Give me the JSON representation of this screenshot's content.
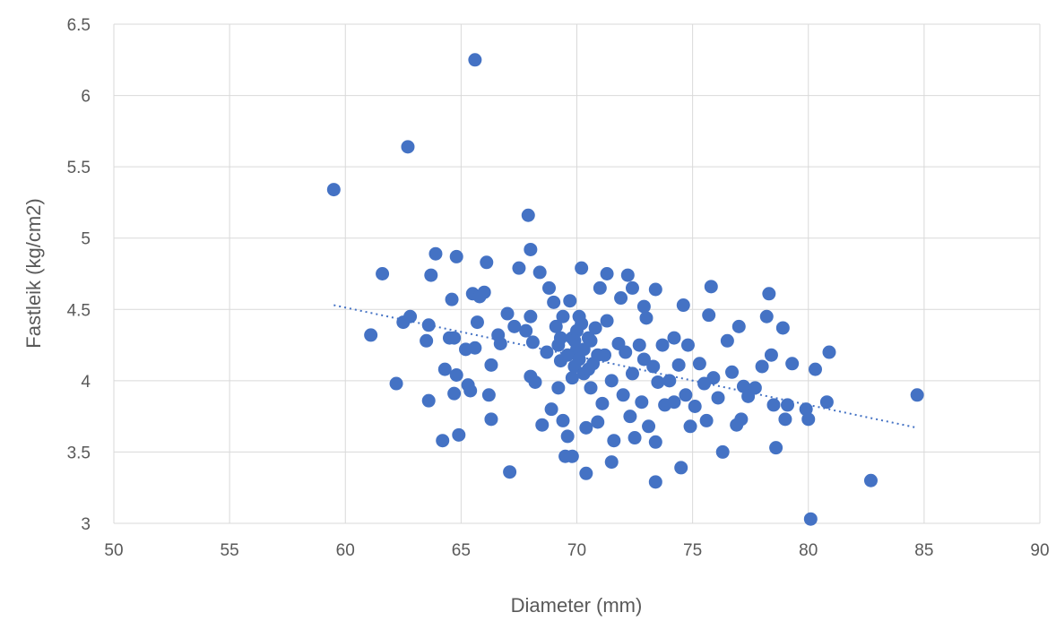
{
  "chart_data": {
    "type": "scatter",
    "title": "",
    "xlabel": "Diameter (mm)",
    "ylabel": "Fastleik (kg/cm2)",
    "xlim": [
      50,
      90
    ],
    "ylim": [
      3,
      6.5
    ],
    "xticks": [
      "50",
      "55",
      "60",
      "65",
      "70",
      "75",
      "80",
      "85",
      "90"
    ],
    "yticks": [
      "3",
      "3.5",
      "4",
      "4.5",
      "5",
      "5.5",
      "6",
      "6.5"
    ],
    "grid": true,
    "legend": "none",
    "colors": {
      "marker": "#4472c4",
      "grid": "#d9d9d9",
      "text": "#595959"
    },
    "trendline": {
      "style": "dotted",
      "x": [
        59.5,
        84.7
      ],
      "y": [
        4.53,
        3.67
      ]
    },
    "series": [
      {
        "points": [
          [
            59.5,
            5.34
          ],
          [
            62.7,
            5.64
          ],
          [
            65.6,
            6.25
          ],
          [
            67.9,
            5.16
          ],
          [
            61.6,
            4.75
          ],
          [
            61.1,
            4.32
          ],
          [
            62.2,
            3.98
          ],
          [
            62.5,
            4.41
          ],
          [
            62.8,
            4.45
          ],
          [
            63.6,
            4.39
          ],
          [
            63.5,
            4.28
          ],
          [
            63.7,
            4.74
          ],
          [
            63.9,
            4.89
          ],
          [
            63.6,
            3.86
          ],
          [
            64.2,
            3.58
          ],
          [
            64.3,
            4.08
          ],
          [
            64.5,
            4.3
          ],
          [
            64.6,
            4.57
          ],
          [
            64.8,
            4.87
          ],
          [
            64.7,
            4.3
          ],
          [
            64.8,
            4.04
          ],
          [
            64.7,
            3.91
          ],
          [
            64.9,
            3.62
          ],
          [
            65.2,
            4.22
          ],
          [
            65.3,
            3.97
          ],
          [
            65.4,
            3.93
          ],
          [
            65.5,
            4.61
          ],
          [
            65.8,
            4.59
          ],
          [
            65.7,
            4.41
          ],
          [
            65.6,
            4.23
          ],
          [
            66.0,
            4.62
          ],
          [
            66.1,
            4.83
          ],
          [
            66.2,
            3.9
          ],
          [
            66.3,
            4.11
          ],
          [
            66.3,
            3.73
          ],
          [
            66.6,
            4.32
          ],
          [
            66.7,
            4.26
          ],
          [
            67.0,
            4.47
          ],
          [
            67.3,
            4.38
          ],
          [
            67.1,
            3.36
          ],
          [
            67.5,
            4.79
          ],
          [
            67.8,
            4.35
          ],
          [
            68.0,
            4.92
          ],
          [
            68.0,
            4.45
          ],
          [
            68.1,
            4.27
          ],
          [
            68.0,
            4.03
          ],
          [
            68.2,
            3.99
          ],
          [
            68.4,
            4.76
          ],
          [
            68.5,
            3.69
          ],
          [
            68.7,
            4.2
          ],
          [
            68.8,
            4.65
          ],
          [
            68.9,
            3.8
          ],
          [
            69.0,
            4.55
          ],
          [
            69.1,
            4.38
          ],
          [
            69.2,
            4.25
          ],
          [
            69.3,
            4.14
          ],
          [
            69.2,
            3.95
          ],
          [
            69.4,
            3.72
          ],
          [
            69.5,
            3.47
          ],
          [
            69.6,
            3.61
          ],
          [
            69.8,
            4.3
          ],
          [
            69.7,
            4.56
          ],
          [
            69.9,
            4.1
          ],
          [
            69.8,
            3.47
          ],
          [
            70.0,
            4.22
          ],
          [
            70.1,
            4.45
          ],
          [
            70.2,
            4.79
          ],
          [
            70.3,
            4.05
          ],
          [
            70.4,
            3.67
          ],
          [
            70.4,
            3.35
          ],
          [
            70.5,
            4.3
          ],
          [
            70.6,
            3.95
          ],
          [
            70.7,
            4.12
          ],
          [
            70.8,
            4.37
          ],
          [
            70.9,
            3.71
          ],
          [
            71.0,
            4.65
          ],
          [
            71.1,
            3.84
          ],
          [
            71.2,
            4.18
          ],
          [
            71.3,
            4.75
          ],
          [
            71.3,
            4.42
          ],
          [
            71.5,
            4.0
          ],
          [
            71.6,
            3.58
          ],
          [
            71.5,
            3.43
          ],
          [
            71.8,
            4.26
          ],
          [
            71.9,
            4.58
          ],
          [
            72.0,
            3.9
          ],
          [
            72.1,
            4.2
          ],
          [
            72.2,
            4.74
          ],
          [
            72.3,
            3.75
          ],
          [
            72.4,
            4.05
          ],
          [
            72.4,
            4.65
          ],
          [
            72.5,
            3.6
          ],
          [
            72.7,
            4.25
          ],
          [
            72.8,
            3.85
          ],
          [
            72.9,
            4.15
          ],
          [
            72.9,
            4.52
          ],
          [
            73.0,
            4.44
          ],
          [
            73.1,
            3.68
          ],
          [
            73.3,
            4.1
          ],
          [
            73.4,
            4.64
          ],
          [
            73.4,
            3.57
          ],
          [
            73.4,
            3.29
          ],
          [
            73.5,
            3.99
          ],
          [
            73.7,
            4.25
          ],
          [
            73.8,
            3.83
          ],
          [
            74.0,
            4.0
          ],
          [
            74.2,
            3.85
          ],
          [
            74.2,
            4.3
          ],
          [
            74.4,
            4.11
          ],
          [
            74.5,
            3.39
          ],
          [
            74.6,
            4.53
          ],
          [
            74.7,
            3.9
          ],
          [
            74.8,
            4.25
          ],
          [
            74.9,
            3.68
          ],
          [
            75.1,
            3.82
          ],
          [
            75.3,
            4.12
          ],
          [
            75.5,
            3.98
          ],
          [
            75.6,
            3.72
          ],
          [
            75.7,
            4.46
          ],
          [
            75.8,
            4.66
          ],
          [
            75.9,
            4.02
          ],
          [
            76.1,
            3.88
          ],
          [
            76.3,
            3.5
          ],
          [
            76.5,
            4.28
          ],
          [
            76.7,
            4.06
          ],
          [
            76.9,
            3.69
          ],
          [
            77.0,
            4.38
          ],
          [
            77.1,
            3.73
          ],
          [
            77.2,
            3.96
          ],
          [
            77.4,
            3.89
          ],
          [
            77.7,
            3.95
          ],
          [
            78.0,
            4.1
          ],
          [
            78.2,
            4.45
          ],
          [
            78.3,
            4.61
          ],
          [
            78.4,
            4.18
          ],
          [
            78.5,
            3.83
          ],
          [
            78.6,
            3.53
          ],
          [
            78.9,
            4.37
          ],
          [
            79.0,
            3.73
          ],
          [
            79.1,
            3.83
          ],
          [
            79.3,
            4.12
          ],
          [
            79.9,
            3.8
          ],
          [
            80.0,
            3.73
          ],
          [
            80.1,
            3.03
          ],
          [
            80.3,
            4.08
          ],
          [
            80.8,
            3.85
          ],
          [
            80.9,
            4.2
          ],
          [
            82.7,
            3.3
          ],
          [
            84.7,
            3.9
          ],
          [
            69.4,
            4.45
          ],
          [
            69.6,
            4.18
          ],
          [
            69.8,
            4.02
          ],
          [
            70.0,
            4.35
          ],
          [
            70.1,
            4.15
          ],
          [
            70.3,
            4.22
          ],
          [
            70.5,
            4.08
          ],
          [
            70.6,
            4.28
          ],
          [
            70.9,
            4.18
          ],
          [
            69.3,
            4.3
          ],
          [
            69.9,
            4.28
          ],
          [
            70.2,
            4.4
          ]
        ]
      }
    ]
  }
}
